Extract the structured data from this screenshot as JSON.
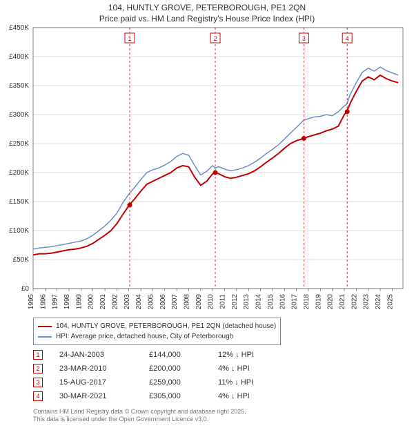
{
  "titles": {
    "line1": "104, HUNTLY GROVE, PETERBOROUGH, PE1 2QN",
    "line2": "Price paid vs. HM Land Registry's House Price Index (HPI)"
  },
  "chart": {
    "type": "line",
    "background_color": "#ffffff",
    "grid_color": "#bbbbbb",
    "axis_color": "#333333",
    "axis_fontsize": 10,
    "x": {
      "min": 1995,
      "max": 2025.9,
      "ticks": [
        1995,
        1996,
        1997,
        1998,
        1999,
        2000,
        2001,
        2002,
        2003,
        2004,
        2005,
        2006,
        2007,
        2008,
        2009,
        2010,
        2011,
        2012,
        2013,
        2014,
        2015,
        2016,
        2017,
        2018,
        2019,
        2020,
        2021,
        2022,
        2023,
        2024,
        2025
      ],
      "tick_labels": [
        "1995",
        "1996",
        "1997",
        "1998",
        "1999",
        "2000",
        "2001",
        "2002",
        "2003",
        "2004",
        "2005",
        "2006",
        "2007",
        "2008",
        "2009",
        "2010",
        "2011",
        "2012",
        "2013",
        "2014",
        "2015",
        "2016",
        "2017",
        "2018",
        "2019",
        "2020",
        "2021",
        "2022",
        "2023",
        "2024",
        "2025"
      ]
    },
    "y": {
      "min": 0,
      "max": 450000,
      "ticks": [
        0,
        50000,
        100000,
        150000,
        200000,
        250000,
        300000,
        350000,
        400000,
        450000
      ],
      "tick_labels": [
        "£0",
        "£50K",
        "£100K",
        "£150K",
        "£200K",
        "£250K",
        "£300K",
        "£350K",
        "£400K",
        "£450K"
      ]
    },
    "series": [
      {
        "name": "property",
        "label": "104, HUNTLY GROVE, PETERBOROUGH, PE1 2QN (detached house)",
        "color": "#c00000",
        "width": 2,
        "data": [
          [
            1995.0,
            58000
          ],
          [
            1995.5,
            60000
          ],
          [
            1996.0,
            60000
          ],
          [
            1996.5,
            61000
          ],
          [
            1997.0,
            63000
          ],
          [
            1997.5,
            65000
          ],
          [
            1998.0,
            67000
          ],
          [
            1998.5,
            68000
          ],
          [
            1999.0,
            70000
          ],
          [
            1999.5,
            73000
          ],
          [
            2000.0,
            78000
          ],
          [
            2000.5,
            85000
          ],
          [
            2001.0,
            92000
          ],
          [
            2001.5,
            100000
          ],
          [
            2002.0,
            112000
          ],
          [
            2002.5,
            128000
          ],
          [
            2003.0,
            143000
          ],
          [
            2003.5,
            155000
          ],
          [
            2004.0,
            168000
          ],
          [
            2004.5,
            180000
          ],
          [
            2005.0,
            185000
          ],
          [
            2005.5,
            190000
          ],
          [
            2006.0,
            195000
          ],
          [
            2006.5,
            200000
          ],
          [
            2007.0,
            208000
          ],
          [
            2007.5,
            212000
          ],
          [
            2008.0,
            210000
          ],
          [
            2008.5,
            192000
          ],
          [
            2009.0,
            178000
          ],
          [
            2009.5,
            185000
          ],
          [
            2010.0,
            198000
          ],
          [
            2010.2,
            200000
          ],
          [
            2010.5,
            198000
          ],
          [
            2011.0,
            193000
          ],
          [
            2011.5,
            190000
          ],
          [
            2012.0,
            192000
          ],
          [
            2012.5,
            195000
          ],
          [
            2013.0,
            198000
          ],
          [
            2013.5,
            203000
          ],
          [
            2014.0,
            210000
          ],
          [
            2014.5,
            218000
          ],
          [
            2015.0,
            225000
          ],
          [
            2015.5,
            233000
          ],
          [
            2016.0,
            242000
          ],
          [
            2016.5,
            250000
          ],
          [
            2017.0,
            255000
          ],
          [
            2017.6,
            259000
          ],
          [
            2018.0,
            262000
          ],
          [
            2018.5,
            265000
          ],
          [
            2019.0,
            268000
          ],
          [
            2019.5,
            272000
          ],
          [
            2020.0,
            275000
          ],
          [
            2020.5,
            280000
          ],
          [
            2021.0,
            300000
          ],
          [
            2021.2,
            305000
          ],
          [
            2021.5,
            320000
          ],
          [
            2022.0,
            340000
          ],
          [
            2022.5,
            358000
          ],
          [
            2023.0,
            365000
          ],
          [
            2023.5,
            360000
          ],
          [
            2024.0,
            368000
          ],
          [
            2024.5,
            362000
          ],
          [
            2025.0,
            358000
          ],
          [
            2025.5,
            355000
          ]
        ]
      },
      {
        "name": "hpi",
        "label": "HPI: Average price, detached house, City of Peterborough",
        "color": "#6b8fc9",
        "width": 1.5,
        "data": [
          [
            1995.0,
            68000
          ],
          [
            1995.5,
            70000
          ],
          [
            1996.0,
            71000
          ],
          [
            1996.5,
            72000
          ],
          [
            1997.0,
            74000
          ],
          [
            1997.5,
            76000
          ],
          [
            1998.0,
            78000
          ],
          [
            1998.5,
            80000
          ],
          [
            1999.0,
            82000
          ],
          [
            1999.5,
            86000
          ],
          [
            2000.0,
            92000
          ],
          [
            2000.5,
            100000
          ],
          [
            2001.0,
            108000
          ],
          [
            2001.5,
            118000
          ],
          [
            2002.0,
            130000
          ],
          [
            2002.5,
            148000
          ],
          [
            2003.0,
            163000
          ],
          [
            2003.5,
            175000
          ],
          [
            2004.0,
            188000
          ],
          [
            2004.5,
            200000
          ],
          [
            2005.0,
            205000
          ],
          [
            2005.5,
            208000
          ],
          [
            2006.0,
            213000
          ],
          [
            2006.5,
            219000
          ],
          [
            2007.0,
            228000
          ],
          [
            2007.5,
            233000
          ],
          [
            2008.0,
            230000
          ],
          [
            2008.5,
            212000
          ],
          [
            2009.0,
            196000
          ],
          [
            2009.5,
            202000
          ],
          [
            2010.0,
            212000
          ],
          [
            2010.2,
            208000
          ],
          [
            2010.5,
            210000
          ],
          [
            2011.0,
            206000
          ],
          [
            2011.5,
            203000
          ],
          [
            2012.0,
            205000
          ],
          [
            2012.5,
            208000
          ],
          [
            2013.0,
            212000
          ],
          [
            2013.5,
            218000
          ],
          [
            2014.0,
            225000
          ],
          [
            2014.5,
            233000
          ],
          [
            2015.0,
            240000
          ],
          [
            2015.5,
            248000
          ],
          [
            2016.0,
            258000
          ],
          [
            2016.5,
            268000
          ],
          [
            2017.0,
            278000
          ],
          [
            2017.6,
            290000
          ],
          [
            2018.0,
            293000
          ],
          [
            2018.5,
            296000
          ],
          [
            2019.0,
            297000
          ],
          [
            2019.5,
            300000
          ],
          [
            2020.0,
            298000
          ],
          [
            2020.5,
            305000
          ],
          [
            2021.0,
            315000
          ],
          [
            2021.2,
            318000
          ],
          [
            2021.5,
            335000
          ],
          [
            2022.0,
            355000
          ],
          [
            2022.5,
            373000
          ],
          [
            2023.0,
            380000
          ],
          [
            2023.5,
            375000
          ],
          [
            2024.0,
            382000
          ],
          [
            2024.5,
            376000
          ],
          [
            2025.0,
            372000
          ],
          [
            2025.5,
            368000
          ]
        ]
      }
    ],
    "sale_markers": {
      "color": "#c00000",
      "box_border": "#c00000",
      "dash": "3,3",
      "label_fontsize": 9,
      "points": [
        {
          "n": "1",
          "x": 2003.07,
          "y": 144000
        },
        {
          "n": "2",
          "x": 2010.22,
          "y": 200000
        },
        {
          "n": "3",
          "x": 2017.62,
          "y": 259000
        },
        {
          "n": "4",
          "x": 2021.24,
          "y": 305000
        }
      ]
    }
  },
  "legend": {
    "items": [
      {
        "color": "#c00000",
        "label": "104, HUNTLY GROVE, PETERBOROUGH, PE1 2QN (detached house)"
      },
      {
        "color": "#6b8fc9",
        "label": "HPI: Average price, detached house, City of Peterborough"
      }
    ]
  },
  "sales_table": {
    "rows": [
      {
        "n": "1",
        "date": "24-JAN-2003",
        "price": "£144,000",
        "diff": "12% ↓ HPI"
      },
      {
        "n": "2",
        "date": "23-MAR-2010",
        "price": "£200,000",
        "diff": "4% ↓ HPI"
      },
      {
        "n": "3",
        "date": "15-AUG-2017",
        "price": "£259,000",
        "diff": "11% ↓ HPI"
      },
      {
        "n": "4",
        "date": "30-MAR-2021",
        "price": "£305,000",
        "diff": "4% ↓ HPI"
      }
    ]
  },
  "footer": {
    "line1": "Contains HM Land Registry data © Crown copyright and database right 2025.",
    "line2": "This data is licensed under the Open Government Licence v3.0."
  }
}
